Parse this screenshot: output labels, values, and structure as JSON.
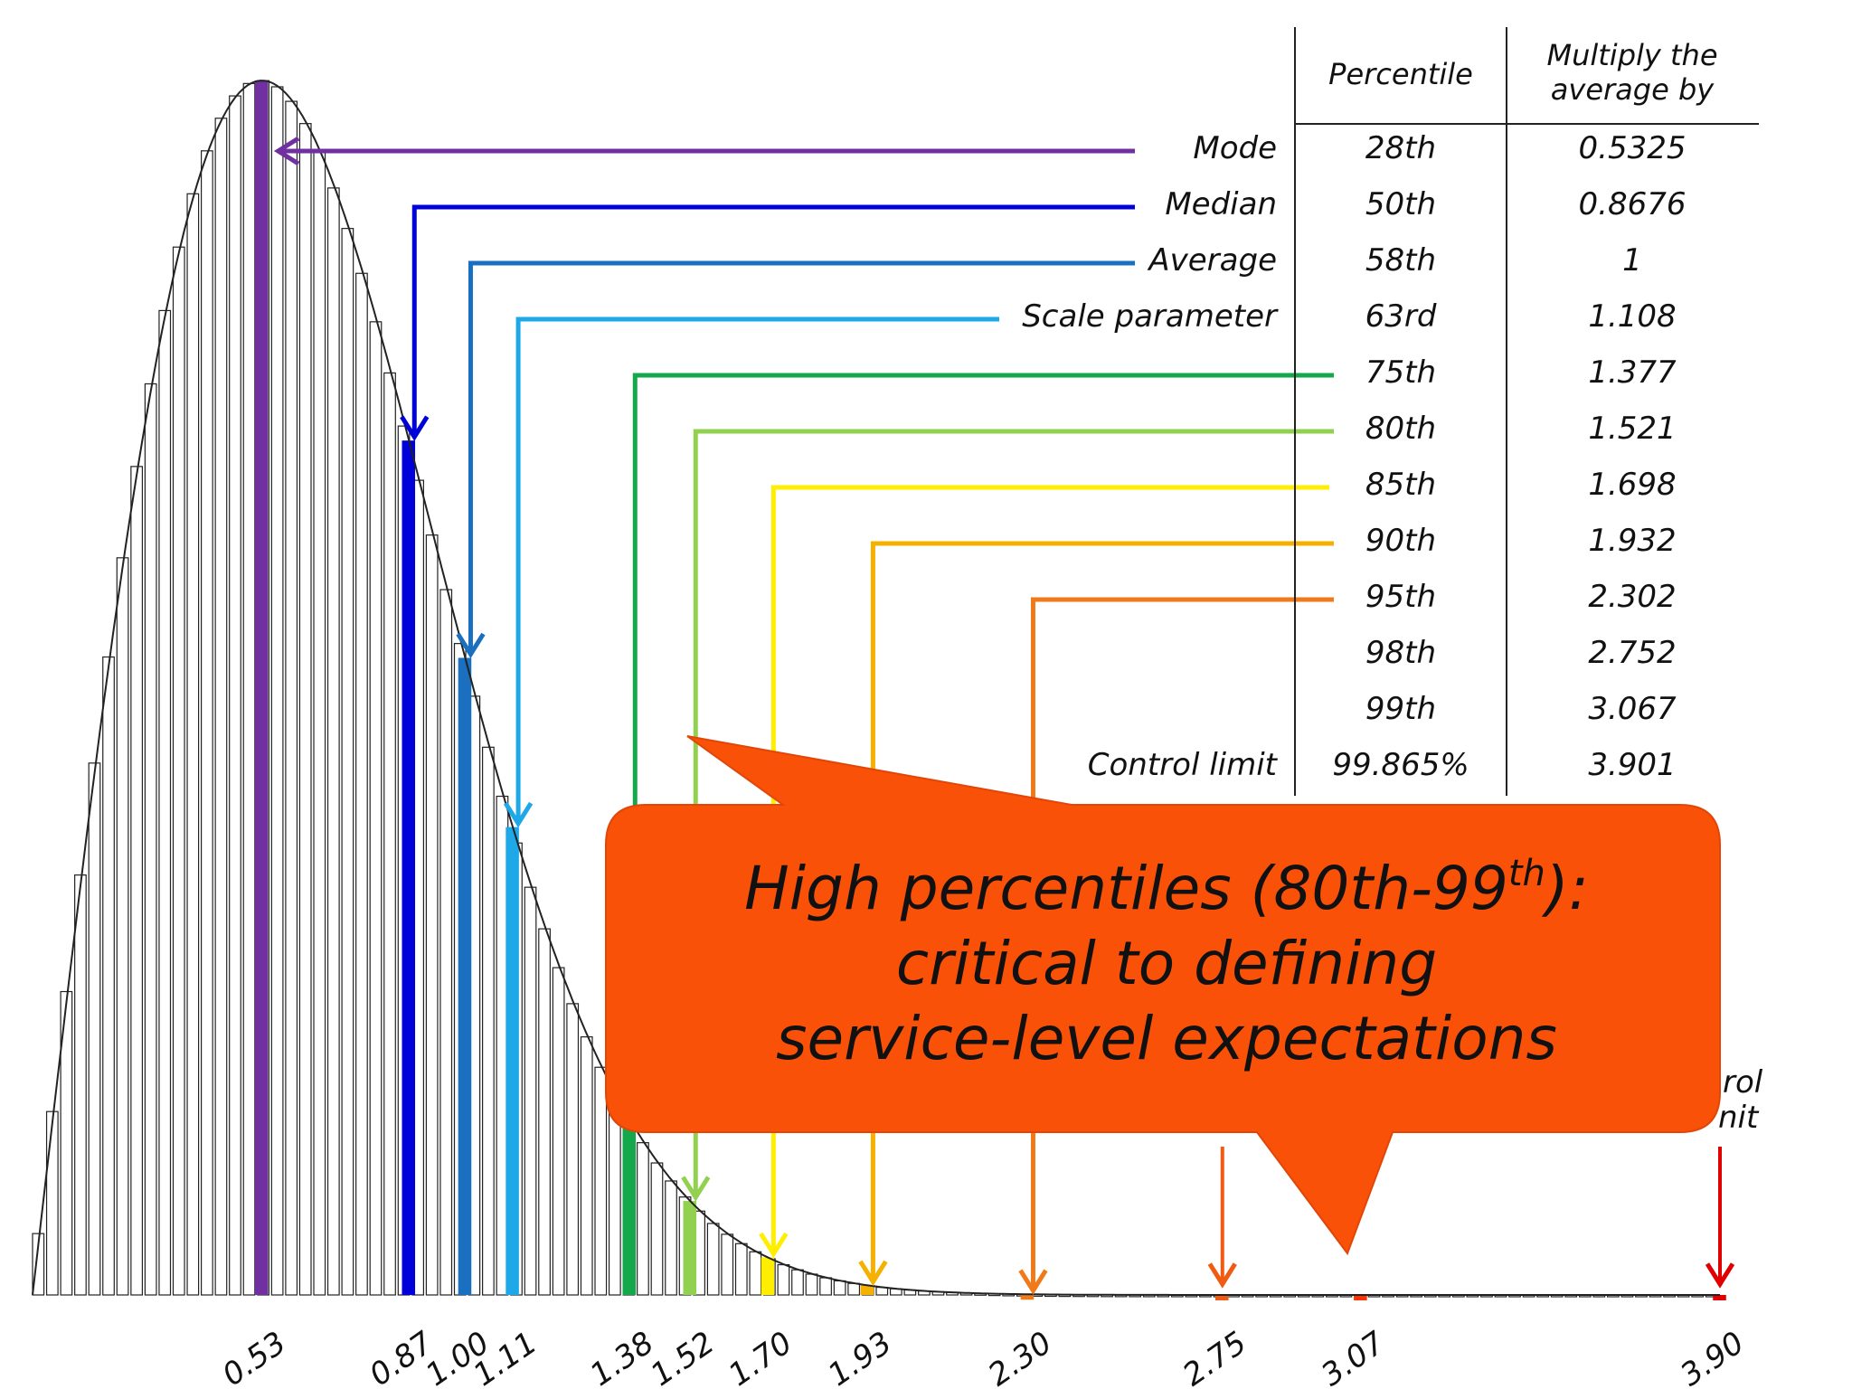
{
  "chart_data": {
    "type": "bar",
    "description_free": true,
    "x_unit": "multiple of the average",
    "xlim": [
      0,
      3.9
    ],
    "mode_x": 0.53,
    "bar_count": 120,
    "tick_labels": [
      "0.53",
      "0.87",
      "1.00",
      "1.11",
      "1.38",
      "1.52",
      "1.70",
      "1.93",
      "2.30",
      "2.75",
      "3.07",
      "3.90"
    ],
    "table": {
      "headers": [
        "Percentile",
        "Multiply the average by"
      ],
      "rows": [
        {
          "label": "Mode",
          "percentile": "28th",
          "multiplier": "0.5325",
          "color": "#7030a0"
        },
        {
          "label": "Median",
          "percentile": "50th",
          "multiplier": "0.8676",
          "color": "#0000d8"
        },
        {
          "label": "Average",
          "percentile": "58th",
          "multiplier": "1",
          "color": "#1a6fc0"
        },
        {
          "label": "Scale parameter",
          "percentile": "63rd",
          "multiplier": "1.108",
          "color": "#1fa8e8"
        },
        {
          "label": "",
          "percentile": "75th",
          "multiplier": "1.377",
          "color": "#13a84a"
        },
        {
          "label": "",
          "percentile": "80th",
          "multiplier": "1.521",
          "color": "#92d050"
        },
        {
          "label": "",
          "percentile": "85th",
          "multiplier": "1.698",
          "color": "#ffee00"
        },
        {
          "label": "",
          "percentile": "90th",
          "multiplier": "1.932",
          "color": "#f5b000"
        },
        {
          "label": "",
          "percentile": "95th",
          "multiplier": "2.302",
          "color": "#f07a1a"
        },
        {
          "label": "",
          "percentile": "98th",
          "multiplier": "2.752",
          "color": "#f05a12"
        },
        {
          "label": "",
          "percentile": "99th",
          "multiplier": "3.067",
          "color": "#ff3300"
        },
        {
          "label": "Control limit",
          "percentile": "99.865%",
          "multiplier": "3.901",
          "color": "#e00000"
        }
      ]
    },
    "highlight_markers": [
      {
        "x": 0.53,
        "color": "#7030a0"
      },
      {
        "x": 0.87,
        "color": "#0000d8"
      },
      {
        "x": 1.0,
        "color": "#1a6fc0"
      },
      {
        "x": 1.11,
        "color": "#1fa8e8"
      },
      {
        "x": 1.38,
        "color": "#13a84a"
      },
      {
        "x": 1.52,
        "color": "#92d050"
      },
      {
        "x": 1.7,
        "color": "#ffee00"
      },
      {
        "x": 1.93,
        "color": "#f5b000"
      },
      {
        "x": 2.3,
        "color": "#f07a1a"
      },
      {
        "x": 2.75,
        "color": "#f05a12"
      },
      {
        "x": 3.07,
        "color": "#ff3300"
      },
      {
        "x": 3.9,
        "color": "#e00000"
      }
    ],
    "control_label_fragment": [
      "rol",
      "nit"
    ]
  },
  "callout": {
    "line1": "High percentiles (80th-99",
    "line1_sup": "th",
    "line1_end": "):",
    "line2": "critical to defining",
    "line3": "service-level expectations",
    "color": "#f95108"
  }
}
